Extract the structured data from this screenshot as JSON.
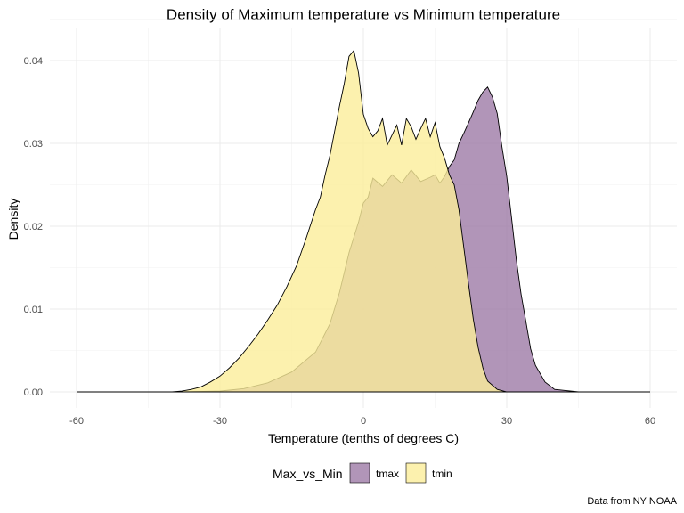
{
  "chart_data": {
    "type": "area",
    "title": "Density of Maximum temperature vs Minimum temperature",
    "xlabel": "Temperature (tenths of degrees C)",
    "ylabel": "Density",
    "caption": "Data from NY NOAA",
    "xlim": [
      -60,
      60
    ],
    "ylim": [
      0,
      0.042
    ],
    "x_ticks": [
      -60,
      -30,
      0,
      30,
      60
    ],
    "x_tick_labels": [
      "-60",
      "-30",
      "0",
      "30",
      "60"
    ],
    "y_ticks": [
      0.0,
      0.01,
      0.02,
      0.03,
      0.04
    ],
    "y_tick_labels": [
      "0.00",
      "0.01",
      "0.02",
      "0.03",
      "0.04"
    ],
    "grid": true,
    "legend": {
      "title": "Max_vs_Min",
      "placement": "bottom",
      "entries": [
        "tmax",
        "tmin"
      ]
    },
    "series": [
      {
        "name": "tmax",
        "color": "#9e7ba6",
        "opacity": 0.8,
        "x": [
          -60,
          -38,
          -30,
          -25,
          -20,
          -15,
          -10,
          -7,
          -5,
          -3,
          -1,
          0,
          1,
          2,
          4,
          6,
          8,
          10,
          12,
          14,
          15,
          16,
          17,
          18,
          19,
          20,
          21,
          22,
          23,
          24,
          25,
          26,
          27,
          28,
          29,
          30,
          31,
          32,
          33,
          34,
          35,
          36,
          38,
          40,
          45,
          60
        ],
        "y": [
          0,
          0,
          0.0001,
          0.0004,
          0.0011,
          0.0024,
          0.0048,
          0.0082,
          0.012,
          0.0168,
          0.0205,
          0.0228,
          0.0235,
          0.0258,
          0.0248,
          0.0262,
          0.0252,
          0.0268,
          0.0254,
          0.0259,
          0.0262,
          0.0252,
          0.026,
          0.0272,
          0.028,
          0.03,
          0.0312,
          0.0325,
          0.0338,
          0.0352,
          0.0362,
          0.0368,
          0.0356,
          0.0336,
          0.0296,
          0.026,
          0.021,
          0.016,
          0.0118,
          0.0085,
          0.0052,
          0.0032,
          0.0012,
          0.0003,
          0,
          0
        ]
      },
      {
        "name": "tmin",
        "color": "#fbee9a",
        "opacity": 0.8,
        "x": [
          -60,
          -40,
          -38,
          -36,
          -34,
          -32,
          -30,
          -28,
          -26,
          -24,
          -22,
          -20,
          -18,
          -16,
          -14,
          -12,
          -10,
          -9,
          -8,
          -7,
          -6,
          -5,
          -4,
          -3,
          -2,
          -1,
          0,
          1,
          2,
          3,
          4,
          5,
          6,
          7,
          8,
          9,
          10,
          11,
          12,
          13,
          14,
          15,
          16,
          17,
          18,
          19,
          20,
          21,
          22,
          23,
          24,
          25,
          26,
          28,
          30,
          32,
          34,
          36,
          40,
          60
        ],
        "y": [
          0,
          0,
          0.0001,
          0.0003,
          0.0006,
          0.0012,
          0.0019,
          0.0029,
          0.0041,
          0.0055,
          0.007,
          0.0087,
          0.0105,
          0.0127,
          0.0152,
          0.0185,
          0.022,
          0.0235,
          0.0262,
          0.0285,
          0.0315,
          0.0345,
          0.0372,
          0.0405,
          0.0412,
          0.0385,
          0.0335,
          0.0318,
          0.0308,
          0.0315,
          0.033,
          0.0298,
          0.031,
          0.0322,
          0.0298,
          0.033,
          0.032,
          0.0305,
          0.0318,
          0.033,
          0.0308,
          0.0325,
          0.0296,
          0.0282,
          0.0262,
          0.025,
          0.022,
          0.0175,
          0.013,
          0.0088,
          0.0054,
          0.0029,
          0.0013,
          0.0003,
          0,
          0,
          0,
          0,
          0,
          0
        ]
      }
    ]
  }
}
